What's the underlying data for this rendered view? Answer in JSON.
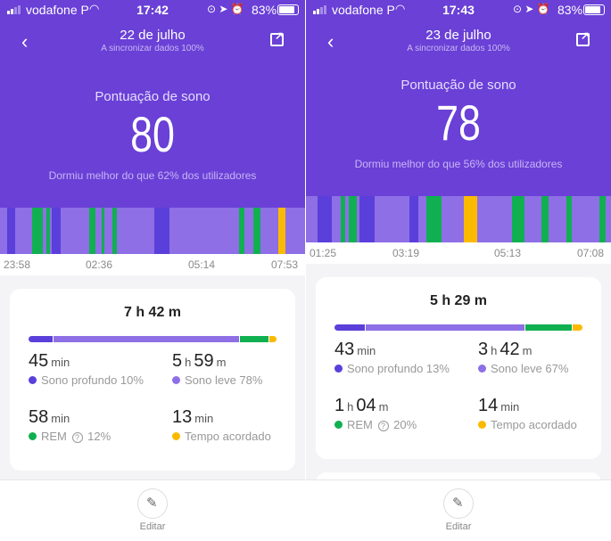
{
  "colors": {
    "deep": "#5b3fdb",
    "light": "#8e6fe6",
    "rem": "#10b050",
    "awake": "#fbba00"
  },
  "panels": [
    {
      "status": {
        "carrier": "vodafone P",
        "time": "17:42",
        "battery": "83%"
      },
      "date": "22 de julho",
      "sync": "A sincronizar dados 100%",
      "score_title": "Pontuação de sono",
      "score": "80",
      "better": "Dormiu melhor do que 62% dos utilizadores",
      "time_labels": [
        "23:58",
        "02:36",
        "05:14",
        "07:53"
      ],
      "stages": [
        [
          "light",
          25
        ],
        [
          "deep",
          25
        ],
        [
          "light",
          57
        ],
        [
          "rem",
          38
        ],
        [
          "light",
          10
        ],
        [
          "rem",
          12
        ],
        [
          "light",
          8
        ],
        [
          "deep",
          30
        ],
        [
          "light",
          95
        ],
        [
          "rem",
          20
        ],
        [
          "light",
          22
        ],
        [
          "rem",
          8
        ],
        [
          "light",
          27
        ],
        [
          "rem",
          16
        ],
        [
          "light",
          127
        ],
        [
          "deep",
          50
        ],
        [
          "light",
          235
        ],
        [
          "rem",
          17
        ],
        [
          "light",
          30
        ],
        [
          "rem",
          23
        ],
        [
          "light",
          60
        ],
        [
          "awake",
          25
        ],
        [
          "light",
          66
        ]
      ],
      "total": {
        "h": "7",
        "m": "42"
      },
      "summary_pct": {
        "deep": 10,
        "light": 78,
        "rem": 12,
        "awake": 3
      },
      "stats": [
        {
          "value": "45",
          "unit": "min",
          "label": "Sono profundo 10%",
          "key": "deep"
        },
        {
          "value": "5",
          "unit": "h",
          "value2": "59",
          "unit2": "m",
          "label": "Sono leve 78%",
          "key": "light"
        },
        {
          "value": "58",
          "unit": "min",
          "label": "REM",
          "label2": "12%",
          "key": "rem"
        },
        {
          "value": "13",
          "unit": "min",
          "label": "Tempo acordado",
          "key": "awake"
        }
      ],
      "edit": "Editar"
    },
    {
      "status": {
        "carrier": "vodafone P",
        "time": "17:43",
        "battery": "83%"
      },
      "date": "23 de julho",
      "sync": "A sincronizar dados 100%",
      "score_title": "Pontuação de sono",
      "score": "78",
      "better": "Dormiu melhor do que 56% dos utilizadores",
      "time_labels": [
        "01:25",
        "03:19",
        "05:13",
        "07:08"
      ],
      "stages": [
        [
          "light",
          40
        ],
        [
          "deep",
          48
        ],
        [
          "light",
          29
        ],
        [
          "rem",
          16
        ],
        [
          "light",
          12
        ],
        [
          "rem",
          27
        ],
        [
          "light",
          8
        ],
        [
          "deep",
          50
        ],
        [
          "light",
          118
        ],
        [
          "deep",
          30
        ],
        [
          "light",
          27
        ],
        [
          "rem",
          51
        ],
        [
          "light",
          76
        ],
        [
          "awake",
          44
        ],
        [
          "light",
          117
        ],
        [
          "rem",
          42
        ],
        [
          "light",
          58
        ],
        [
          "rem",
          22
        ],
        [
          "light",
          61
        ],
        [
          "rem",
          19
        ],
        [
          "light",
          93
        ],
        [
          "rem",
          20
        ],
        [
          "light",
          18
        ]
      ],
      "total": {
        "h": "5",
        "m": "29"
      },
      "summary_pct": {
        "deep": 13,
        "light": 67,
        "rem": 20,
        "awake": 4
      },
      "stats": [
        {
          "value": "43",
          "unit": "min",
          "label": "Sono profundo 13%",
          "key": "deep"
        },
        {
          "value": "3",
          "unit": "h",
          "value2": "42",
          "unit2": "m",
          "label": "Sono leve 67%",
          "key": "light"
        },
        {
          "value": "1",
          "unit": "h",
          "value2": "04",
          "unit2": "m",
          "label": "REM",
          "label2": "20%",
          "key": "rem"
        },
        {
          "value": "14",
          "unit": "min",
          "label": "Tempo acordado",
          "key": "awake"
        }
      ],
      "edit": "Editar"
    }
  ]
}
